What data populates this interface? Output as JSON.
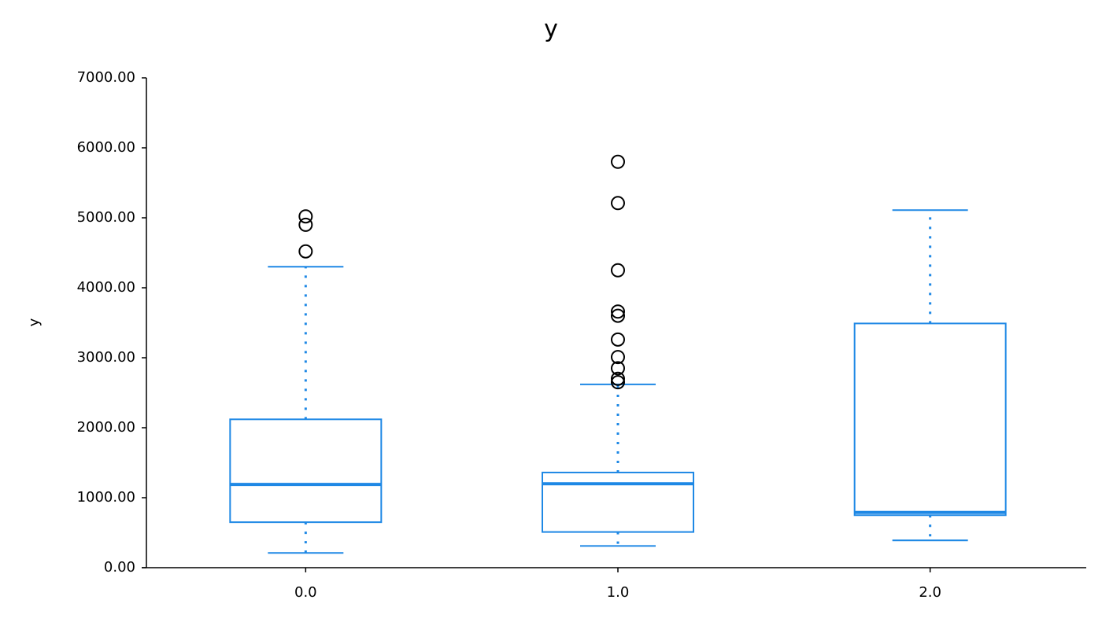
{
  "chart_data": {
    "type": "box",
    "title": "y",
    "y_label": "y",
    "categories": [
      "0.0",
      "1.0",
      "2.0"
    ],
    "color": "#1e88e5",
    "boxes": [
      {
        "whisker_low": 210,
        "q1": 650,
        "median": 1190,
        "q3": 2120,
        "whisker_high": 4300,
        "outliers": [
          5020,
          4900,
          4520
        ]
      },
      {
        "whisker_low": 310,
        "q1": 510,
        "median": 1200,
        "q3": 1360,
        "whisker_high": 2620,
        "outliers": [
          5800,
          5210,
          4250,
          3660,
          3600,
          3260,
          3010,
          2850,
          2700,
          2650
        ]
      },
      {
        "whisker_low": 390,
        "q1": 750,
        "median": 790,
        "q3": 3490,
        "whisker_high": 5110,
        "outliers": []
      }
    ],
    "ylim": [
      0,
      7000
    ],
    "yticks": [
      {
        "value": 0,
        "label": "0.00"
      },
      {
        "value": 1000,
        "label": "1000.00"
      },
      {
        "value": 2000,
        "label": "2000.00"
      },
      {
        "value": 3000,
        "label": "3000.00"
      },
      {
        "value": 4000,
        "label": "4000.00"
      },
      {
        "value": 5000,
        "label": "5000.00"
      },
      {
        "value": 6000,
        "label": "6000.00"
      },
      {
        "value": 7000,
        "label": "7000.00"
      }
    ]
  }
}
